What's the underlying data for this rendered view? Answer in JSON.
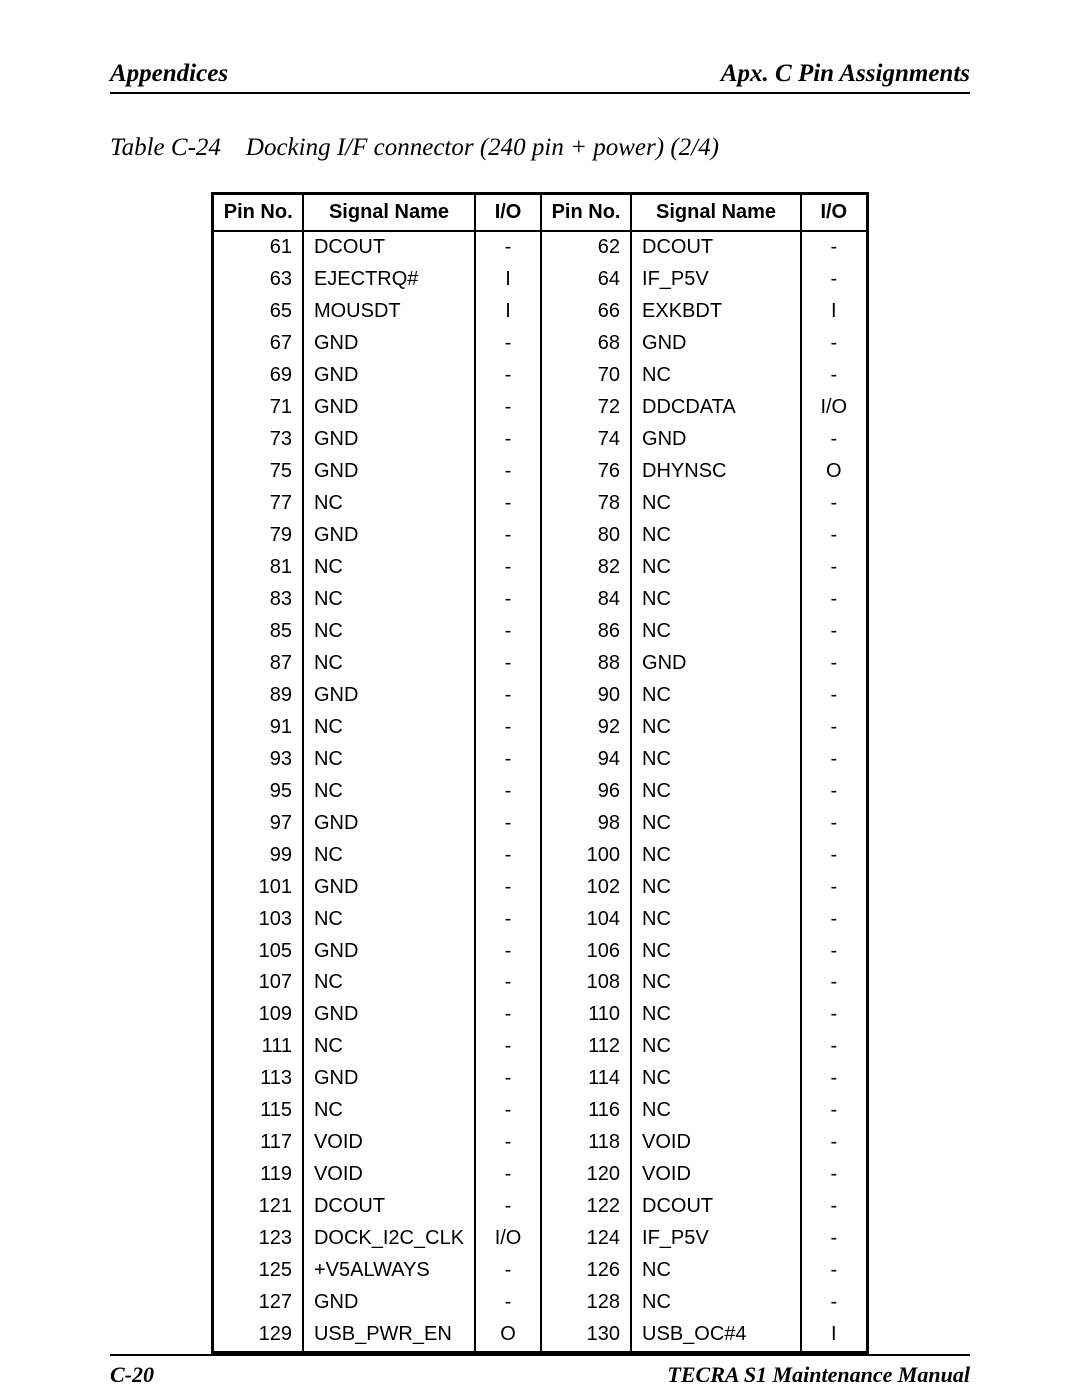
{
  "header": {
    "left": "Appendices",
    "right": "Apx. C  Pin Assignments"
  },
  "caption": {
    "label": "Table C-24",
    "title": "Docking I/F connector  (240 pin + power) (2/4)"
  },
  "table": {
    "headers": [
      "Pin No.",
      "Signal Name",
      "I/O",
      "Pin No.",
      "Signal Name",
      "I/O"
    ],
    "rows": [
      [
        "61",
        "DCOUT",
        "-",
        "62",
        "DCOUT",
        "-"
      ],
      [
        "63",
        "EJECTRQ#",
        "I",
        "64",
        "IF_P5V",
        "-"
      ],
      [
        "65",
        "MOUSDT",
        "I",
        "66",
        "EXKBDT",
        "I"
      ],
      [
        "67",
        "GND",
        "-",
        "68",
        "GND",
        "-"
      ],
      [
        "69",
        "GND",
        "-",
        "70",
        "NC",
        "-"
      ],
      [
        "71",
        "GND",
        "-",
        "72",
        "DDCDATA",
        "I/O"
      ],
      [
        "73",
        "GND",
        "-",
        "74",
        "GND",
        "-"
      ],
      [
        "75",
        "GND",
        "-",
        "76",
        "DHYNSC",
        "O"
      ],
      [
        "77",
        "NC",
        "-",
        "78",
        "NC",
        "-"
      ],
      [
        "79",
        "GND",
        "-",
        "80",
        "NC",
        "-"
      ],
      [
        "81",
        "NC",
        "-",
        "82",
        "NC",
        "-"
      ],
      [
        "83",
        "NC",
        "-",
        "84",
        "NC",
        "-"
      ],
      [
        "85",
        "NC",
        "-",
        "86",
        "NC",
        "-"
      ],
      [
        "87",
        "NC",
        "-",
        "88",
        "GND",
        "-"
      ],
      [
        "89",
        "GND",
        "-",
        "90",
        "NC",
        "-"
      ],
      [
        "91",
        "NC",
        "-",
        "92",
        "NC",
        "-"
      ],
      [
        "93",
        "NC",
        "-",
        "94",
        "NC",
        "-"
      ],
      [
        "95",
        "NC",
        "-",
        "96",
        "NC",
        "-"
      ],
      [
        "97",
        "GND",
        "-",
        "98",
        "NC",
        "-"
      ],
      [
        "99",
        "NC",
        "-",
        "100",
        "NC",
        "-"
      ],
      [
        "101",
        "GND",
        "-",
        "102",
        "NC",
        "-"
      ],
      [
        "103",
        "NC",
        "-",
        "104",
        "NC",
        "-"
      ],
      [
        "105",
        "GND",
        "-",
        "106",
        "NC",
        "-"
      ],
      [
        "107",
        "NC",
        "-",
        "108",
        "NC",
        "-"
      ],
      [
        "109",
        "GND",
        "-",
        "110",
        "NC",
        "-"
      ],
      [
        "111",
        "NC",
        "-",
        "112",
        "NC",
        "-"
      ],
      [
        "113",
        "GND",
        "-",
        "114",
        "NC",
        "-"
      ],
      [
        "115",
        "NC",
        "-",
        "116",
        "NC",
        "-"
      ],
      [
        "117",
        "VOID",
        "-",
        "118",
        "VOID",
        "-"
      ],
      [
        "119",
        "VOID",
        "-",
        "120",
        "VOID",
        "-"
      ],
      [
        "121",
        "DCOUT",
        "-",
        "122",
        "DCOUT",
        "-"
      ],
      [
        "123",
        "DOCK_I2C_CLK",
        "I/O",
        "124",
        "IF_P5V",
        "-"
      ],
      [
        "125",
        "+V5ALWAYS",
        "-",
        "126",
        "NC",
        "-"
      ],
      [
        "127",
        "GND",
        "-",
        "128",
        "NC",
        "-"
      ],
      [
        "129",
        "USB_PWR_EN",
        "O",
        "130",
        "USB_OC#4",
        "I"
      ]
    ]
  },
  "footer": {
    "left": "C-20",
    "right_italic": "TECRA S1   Maintenance Manual"
  }
}
